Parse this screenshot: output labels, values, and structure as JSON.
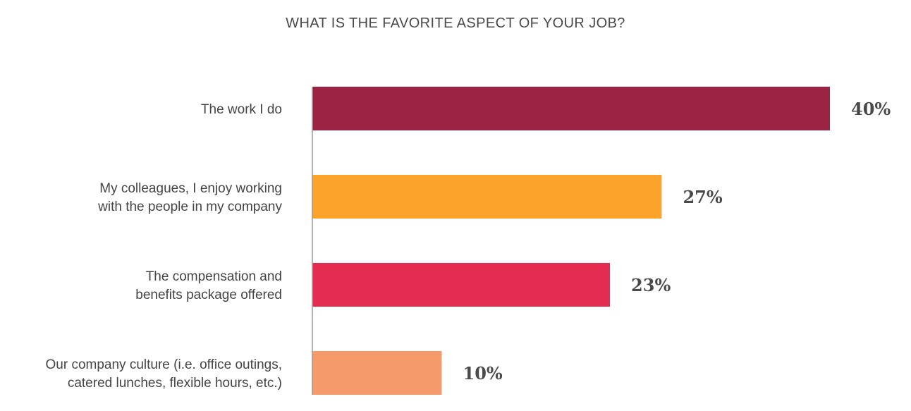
{
  "chart_data": {
    "type": "bar",
    "orientation": "horizontal",
    "title": "WHAT IS THE FAVORITE ASPECT OF YOUR JOB?",
    "categories": [
      [
        "The work I do"
      ],
      [
        "My colleagues, I enjoy working",
        "with the people in my company"
      ],
      [
        "The compensation and",
        "benefits package offered"
      ],
      [
        "Our company culture (i.e. office outings,",
        "catered lunches, flexible hours, etc.)"
      ]
    ],
    "values": [
      40,
      27,
      23,
      10
    ],
    "value_labels": [
      "40%",
      "27%",
      "23%",
      "10%"
    ],
    "colors": [
      "#9c2344",
      "#fca32b",
      "#e32c50",
      "#f59a6a"
    ],
    "unit": "%",
    "grid": false,
    "legend": "none"
  }
}
